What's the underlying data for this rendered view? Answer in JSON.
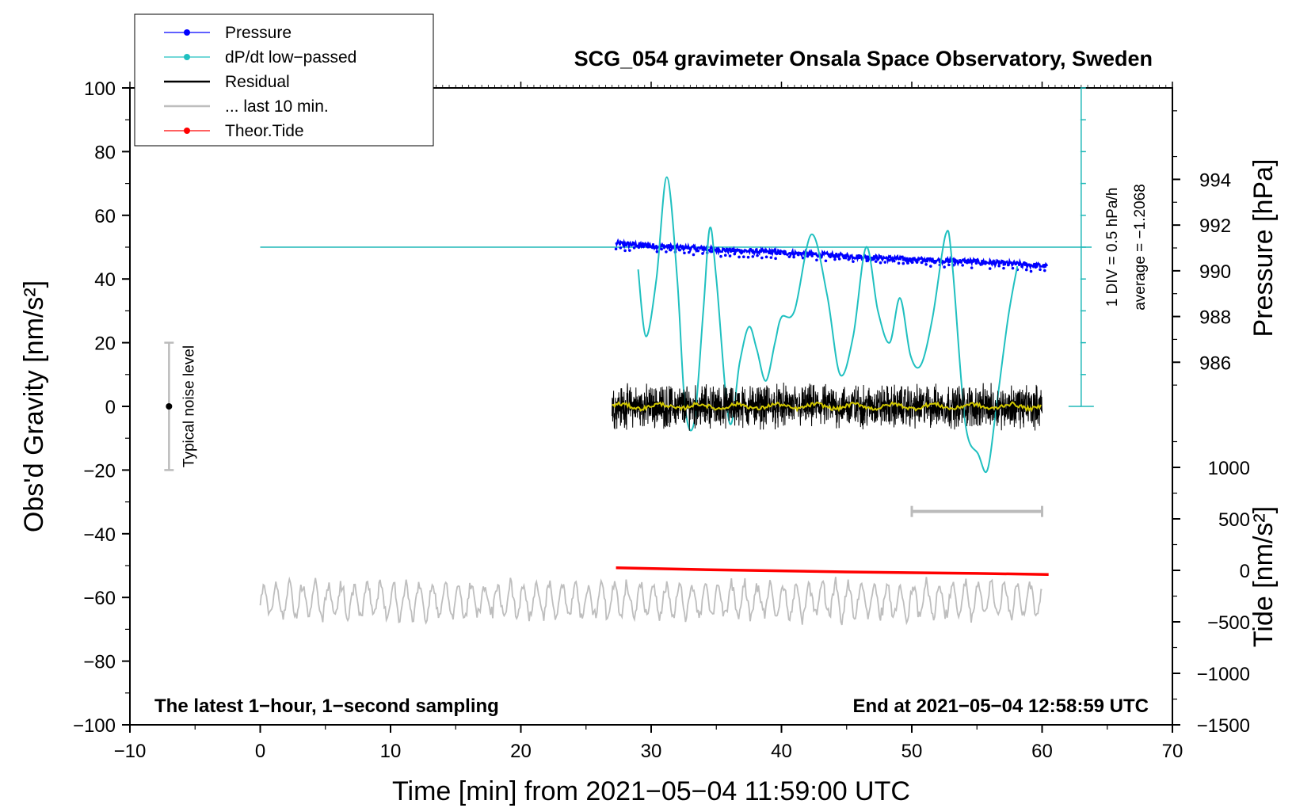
{
  "chart_data": {
    "type": "line",
    "title": "SCG_054 gravimeter Onsala Space Observatory, Sweden",
    "xlabel": "Time [min] from 2021−05−04 11:59:00 UTC",
    "ylabel_left": "Obs'd Gravity [nm/s²]",
    "ylabel_right_top": "Pressure [hPa]",
    "ylabel_right_bottom": "Tide [nm/s²]",
    "xlim": [
      -10,
      70
    ],
    "ylim": [
      -100,
      100
    ],
    "pressure_ylim": [
      984,
      998
    ],
    "tide_ylim": [
      -1500,
      1500
    ],
    "x_ticks": [
      -10,
      0,
      10,
      20,
      30,
      40,
      50,
      60,
      70
    ],
    "x_tick_labels": [
      "−10",
      "0",
      "10",
      "20",
      "30",
      "40",
      "50",
      "60",
      "70"
    ],
    "y_ticks": [
      -100,
      -80,
      -60,
      -40,
      -20,
      0,
      20,
      40,
      60,
      80,
      100
    ],
    "y_tick_labels": [
      "−100",
      "−80",
      "−60",
      "−40",
      "−20",
      "0",
      "20",
      "40",
      "60",
      "80",
      "100"
    ],
    "pressure_ticks": [
      986,
      988,
      990,
      992,
      994
    ],
    "pressure_tick_labels": [
      "986",
      "988",
      "990",
      "992",
      "994"
    ],
    "tide_ticks": [
      -1500,
      -1000,
      -500,
      0,
      500,
      1000
    ],
    "tide_tick_labels": [
      "−1500",
      "−1000",
      "−500",
      "0",
      "500",
      "1000"
    ],
    "legend": [
      {
        "label": "Pressure",
        "color": "#0000ff",
        "marker": true
      },
      {
        "label": "dP/dt low−passed",
        "color": "#00c8c8",
        "marker": true
      },
      {
        "label": "Residual",
        "color": "#000000",
        "marker": false
      },
      {
        "label": "... last 10 min.",
        "color": "#bebebe",
        "marker": false
      },
      {
        "label": "Theor.Tide",
        "color": "#ff0000",
        "marker": true
      }
    ],
    "series": [
      {
        "name": "Pressure",
        "unit": "hPa",
        "color": "#0000ff",
        "x": [
          27.3,
          30,
          33,
          36,
          40,
          45,
          50,
          55,
          58,
          60.4
        ],
        "values": [
          991.2,
          991.1,
          991.0,
          990.9,
          990.8,
          990.65,
          990.5,
          990.4,
          990.3,
          990.2
        ]
      },
      {
        "name": "dP/dt low−passed",
        "unit": "gravity-axis",
        "color": "#00c8c8",
        "x": [
          29.0,
          29.6,
          30.4,
          31.2,
          32.0,
          32.6,
          33.3,
          34.0,
          34.5,
          35.0,
          36.0,
          36.8,
          37.5,
          38.1,
          38.8,
          39.5,
          40.0,
          41.0,
          42.3,
          43.5,
          44.5,
          45.5,
          46.5,
          47.4,
          48.3,
          49.1,
          49.9,
          50.7,
          51.6,
          52.6,
          53.1,
          54.1,
          55.1,
          55.8,
          56.5,
          57.4,
          58.1
        ],
        "values": [
          43,
          22,
          40,
          72,
          40,
          0,
          -5,
          30,
          56,
          40,
          -5,
          14,
          25,
          18,
          8,
          20,
          28,
          30,
          54,
          35,
          10,
          22,
          50,
          30,
          20,
          34,
          16,
          13,
          28,
          54,
          45,
          -5,
          -15,
          -20,
          0,
          28,
          44
        ]
      },
      {
        "name": "Residual",
        "unit": "nm/s²",
        "color": "#000000",
        "x_start": 27.0,
        "x_end": 60.0,
        "mean": 0,
        "amplitude": 6
      },
      {
        "name": "Residual smoothed",
        "unit": "nm/s²",
        "color": "#d2c800",
        "x_start": 27.0,
        "x_end": 60.0,
        "mean": 0,
        "amplitude": 1.2
      },
      {
        "name": "... last 10 min.",
        "unit": "nm/s²",
        "color": "#bebebe",
        "x_start": 0.0,
        "x_end": 60.0,
        "mean": -61,
        "amplitude": 5
      },
      {
        "name": "Theor.Tide",
        "unit": "nm/s²",
        "color": "#ff0000",
        "x": [
          27.3,
          35,
          45,
          55,
          60.5
        ],
        "values": [
          25,
          5,
          -15,
          -30,
          -40
        ]
      }
    ],
    "cyan_reference_line": {
      "value": 50,
      "x_start": 0.0,
      "x_end": 63.8
    },
    "scale_bar": {
      "x": 63.0,
      "y_bottom": 0,
      "y_top": 100,
      "label": "1 DIV = 0.5 hPa/h",
      "average_label": "average = −1.2068"
    },
    "noise_bar": {
      "x": -7,
      "center": 0,
      "half_range": 20,
      "label": "Typical noise level"
    },
    "ten_minute_bar": {
      "x_start": 50,
      "x_end": 60,
      "y": -33
    },
    "note_left": "The latest 1−hour, 1−second sampling",
    "note_right": "End at 2021−05−04 12:58:59 UTC"
  }
}
